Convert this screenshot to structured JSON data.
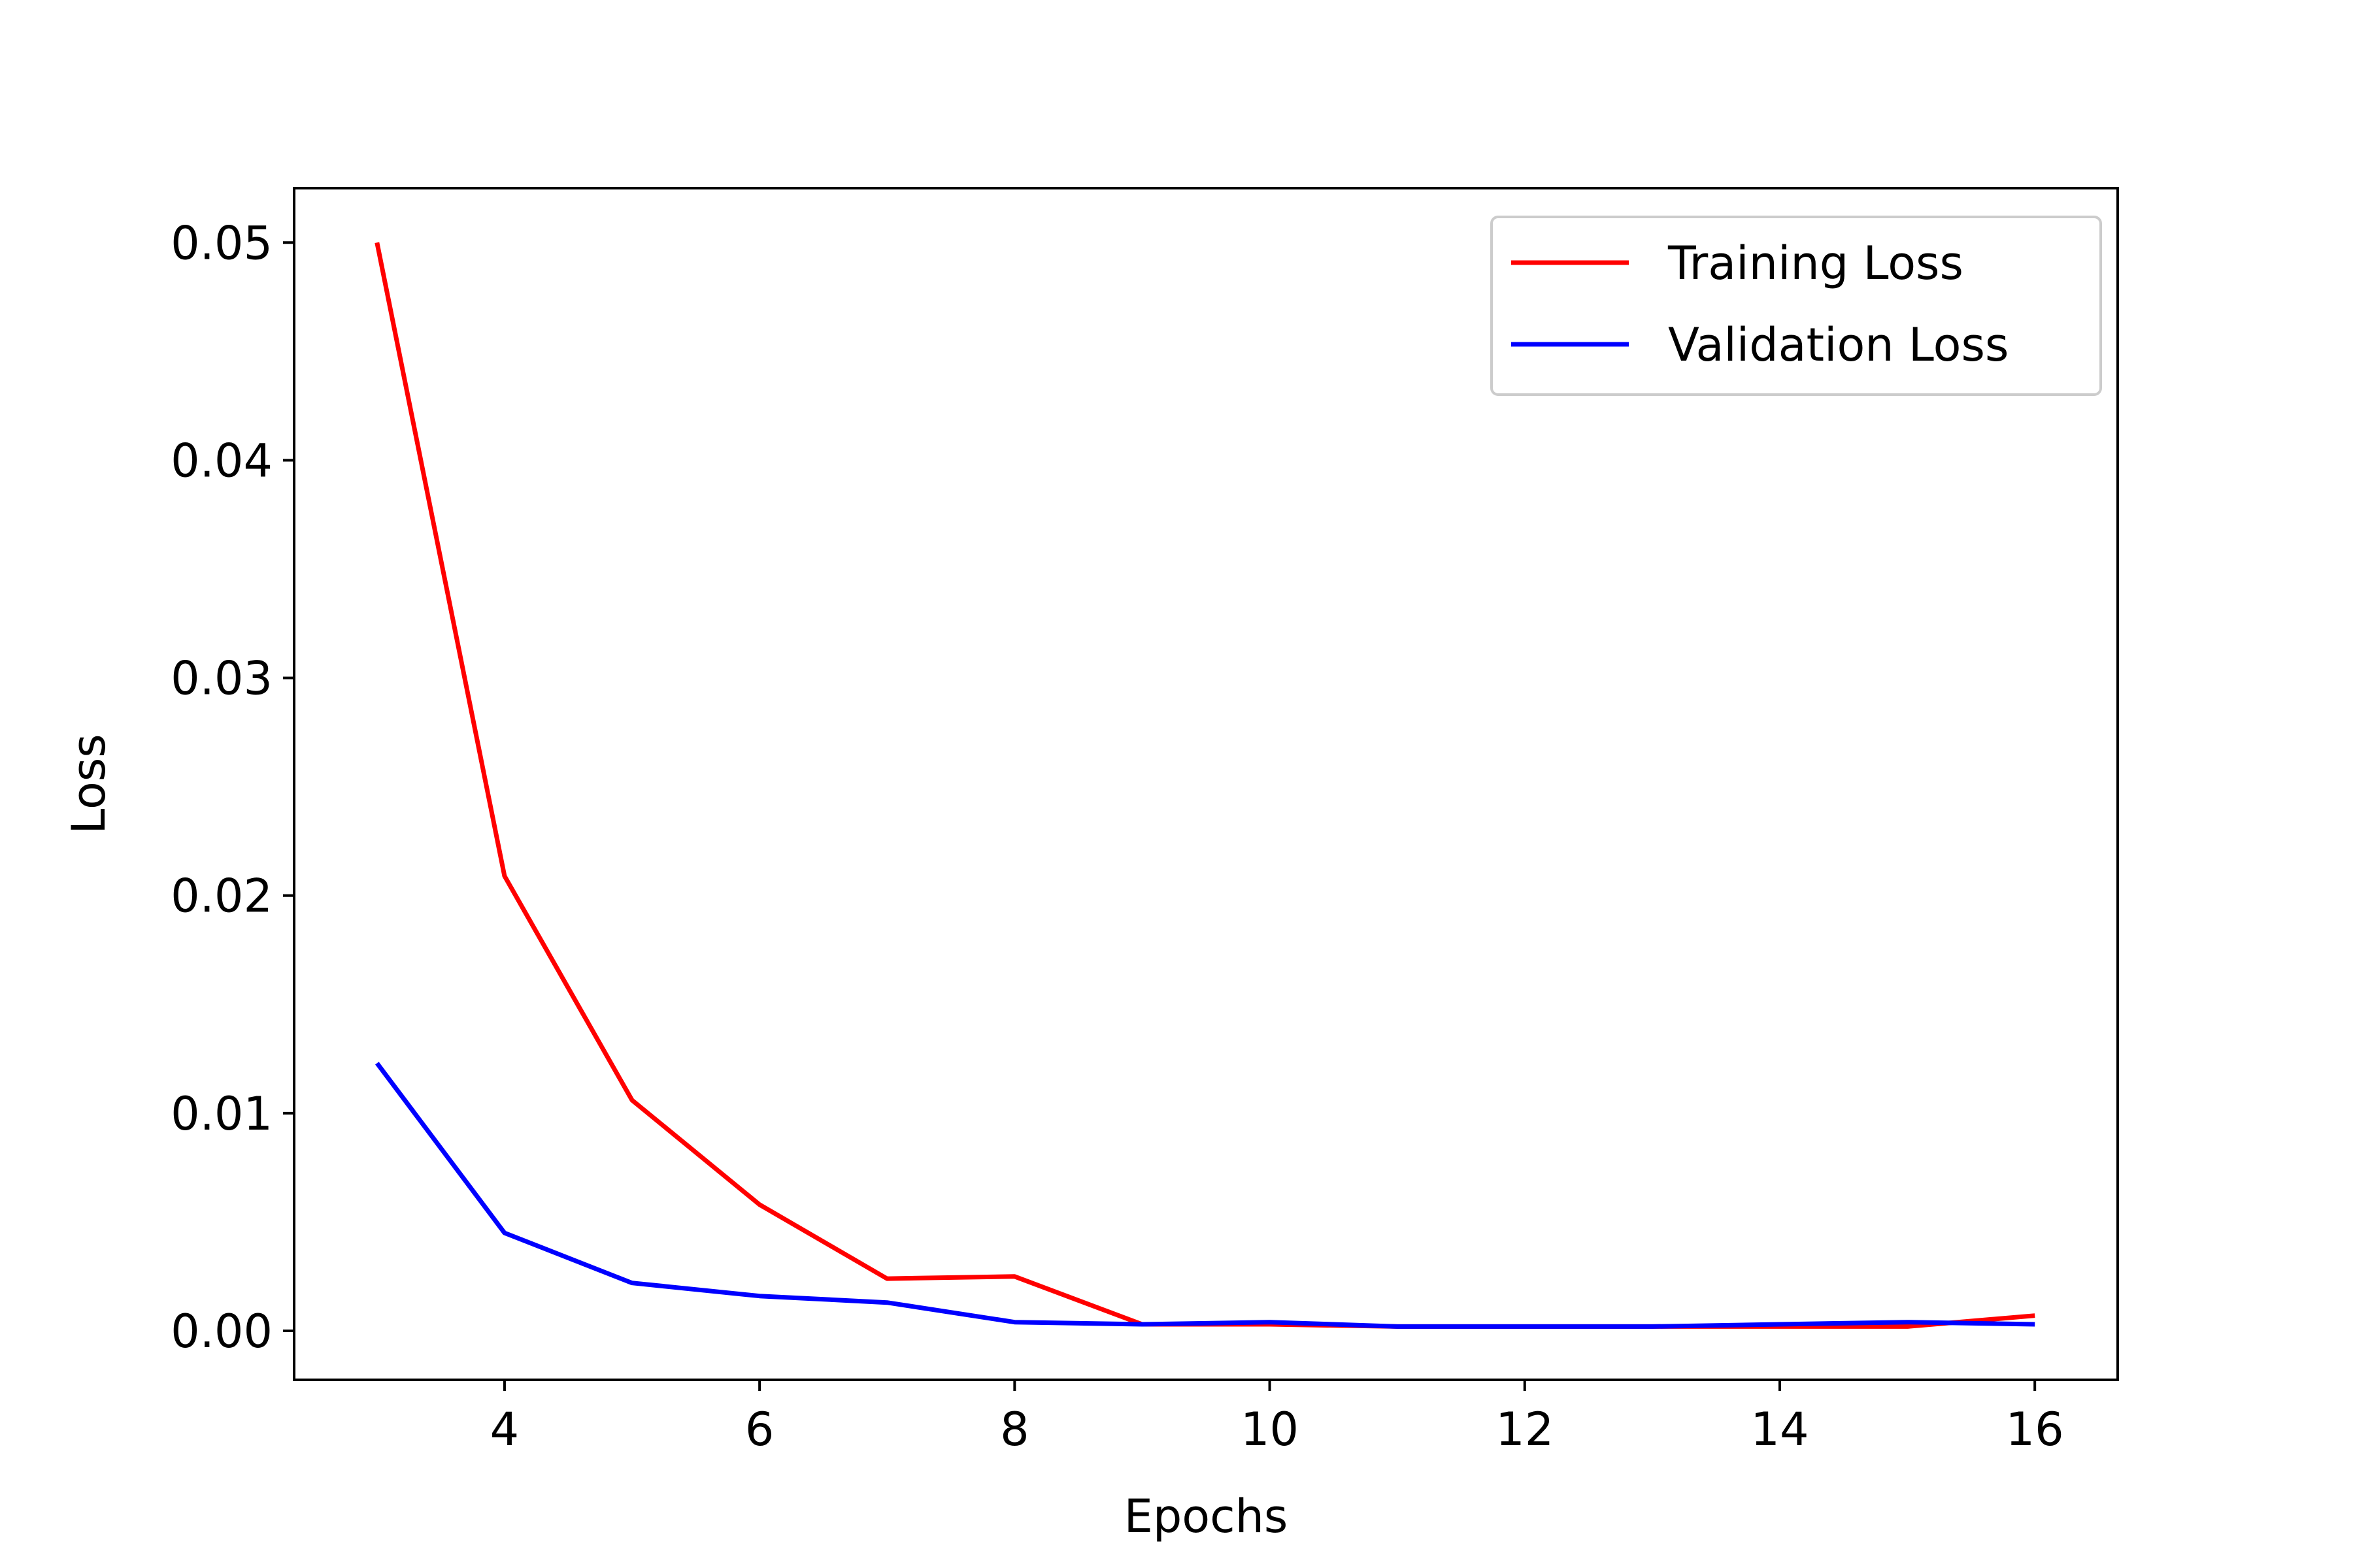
{
  "chart_data": {
    "type": "line",
    "title": "",
    "xlabel": "Epochs",
    "ylabel": "Loss",
    "xlim": [
      2.35,
      16.65
    ],
    "ylim": [
      -0.00225,
      0.0525
    ],
    "xticks": [
      4,
      6,
      8,
      10,
      12,
      14,
      16
    ],
    "yticks": [
      0.0,
      0.01,
      0.02,
      0.03,
      0.04,
      0.05
    ],
    "ytick_labels": [
      "0.00",
      "0.01",
      "0.02",
      "0.03",
      "0.04",
      "0.05"
    ],
    "grid": false,
    "legend_position": "top-right",
    "x": [
      3,
      4,
      5,
      6,
      7,
      8,
      9,
      10,
      11,
      12,
      13,
      14,
      15,
      16
    ],
    "series": [
      {
        "name": "Training Loss",
        "color": "#ff0000",
        "values": [
          0.05,
          0.0209,
          0.0106,
          0.0058,
          0.0024,
          0.0025,
          0.0003,
          0.0003,
          0.0002,
          0.0002,
          0.0002,
          0.0002,
          0.0002,
          0.0007
        ]
      },
      {
        "name": "Validation Loss",
        "color": "#0000ff",
        "values": [
          0.0123,
          0.0045,
          0.0022,
          0.0016,
          0.0013,
          0.0004,
          0.0003,
          0.0004,
          0.0002,
          0.0002,
          0.0002,
          0.0003,
          0.0004,
          0.0003
        ]
      }
    ]
  }
}
